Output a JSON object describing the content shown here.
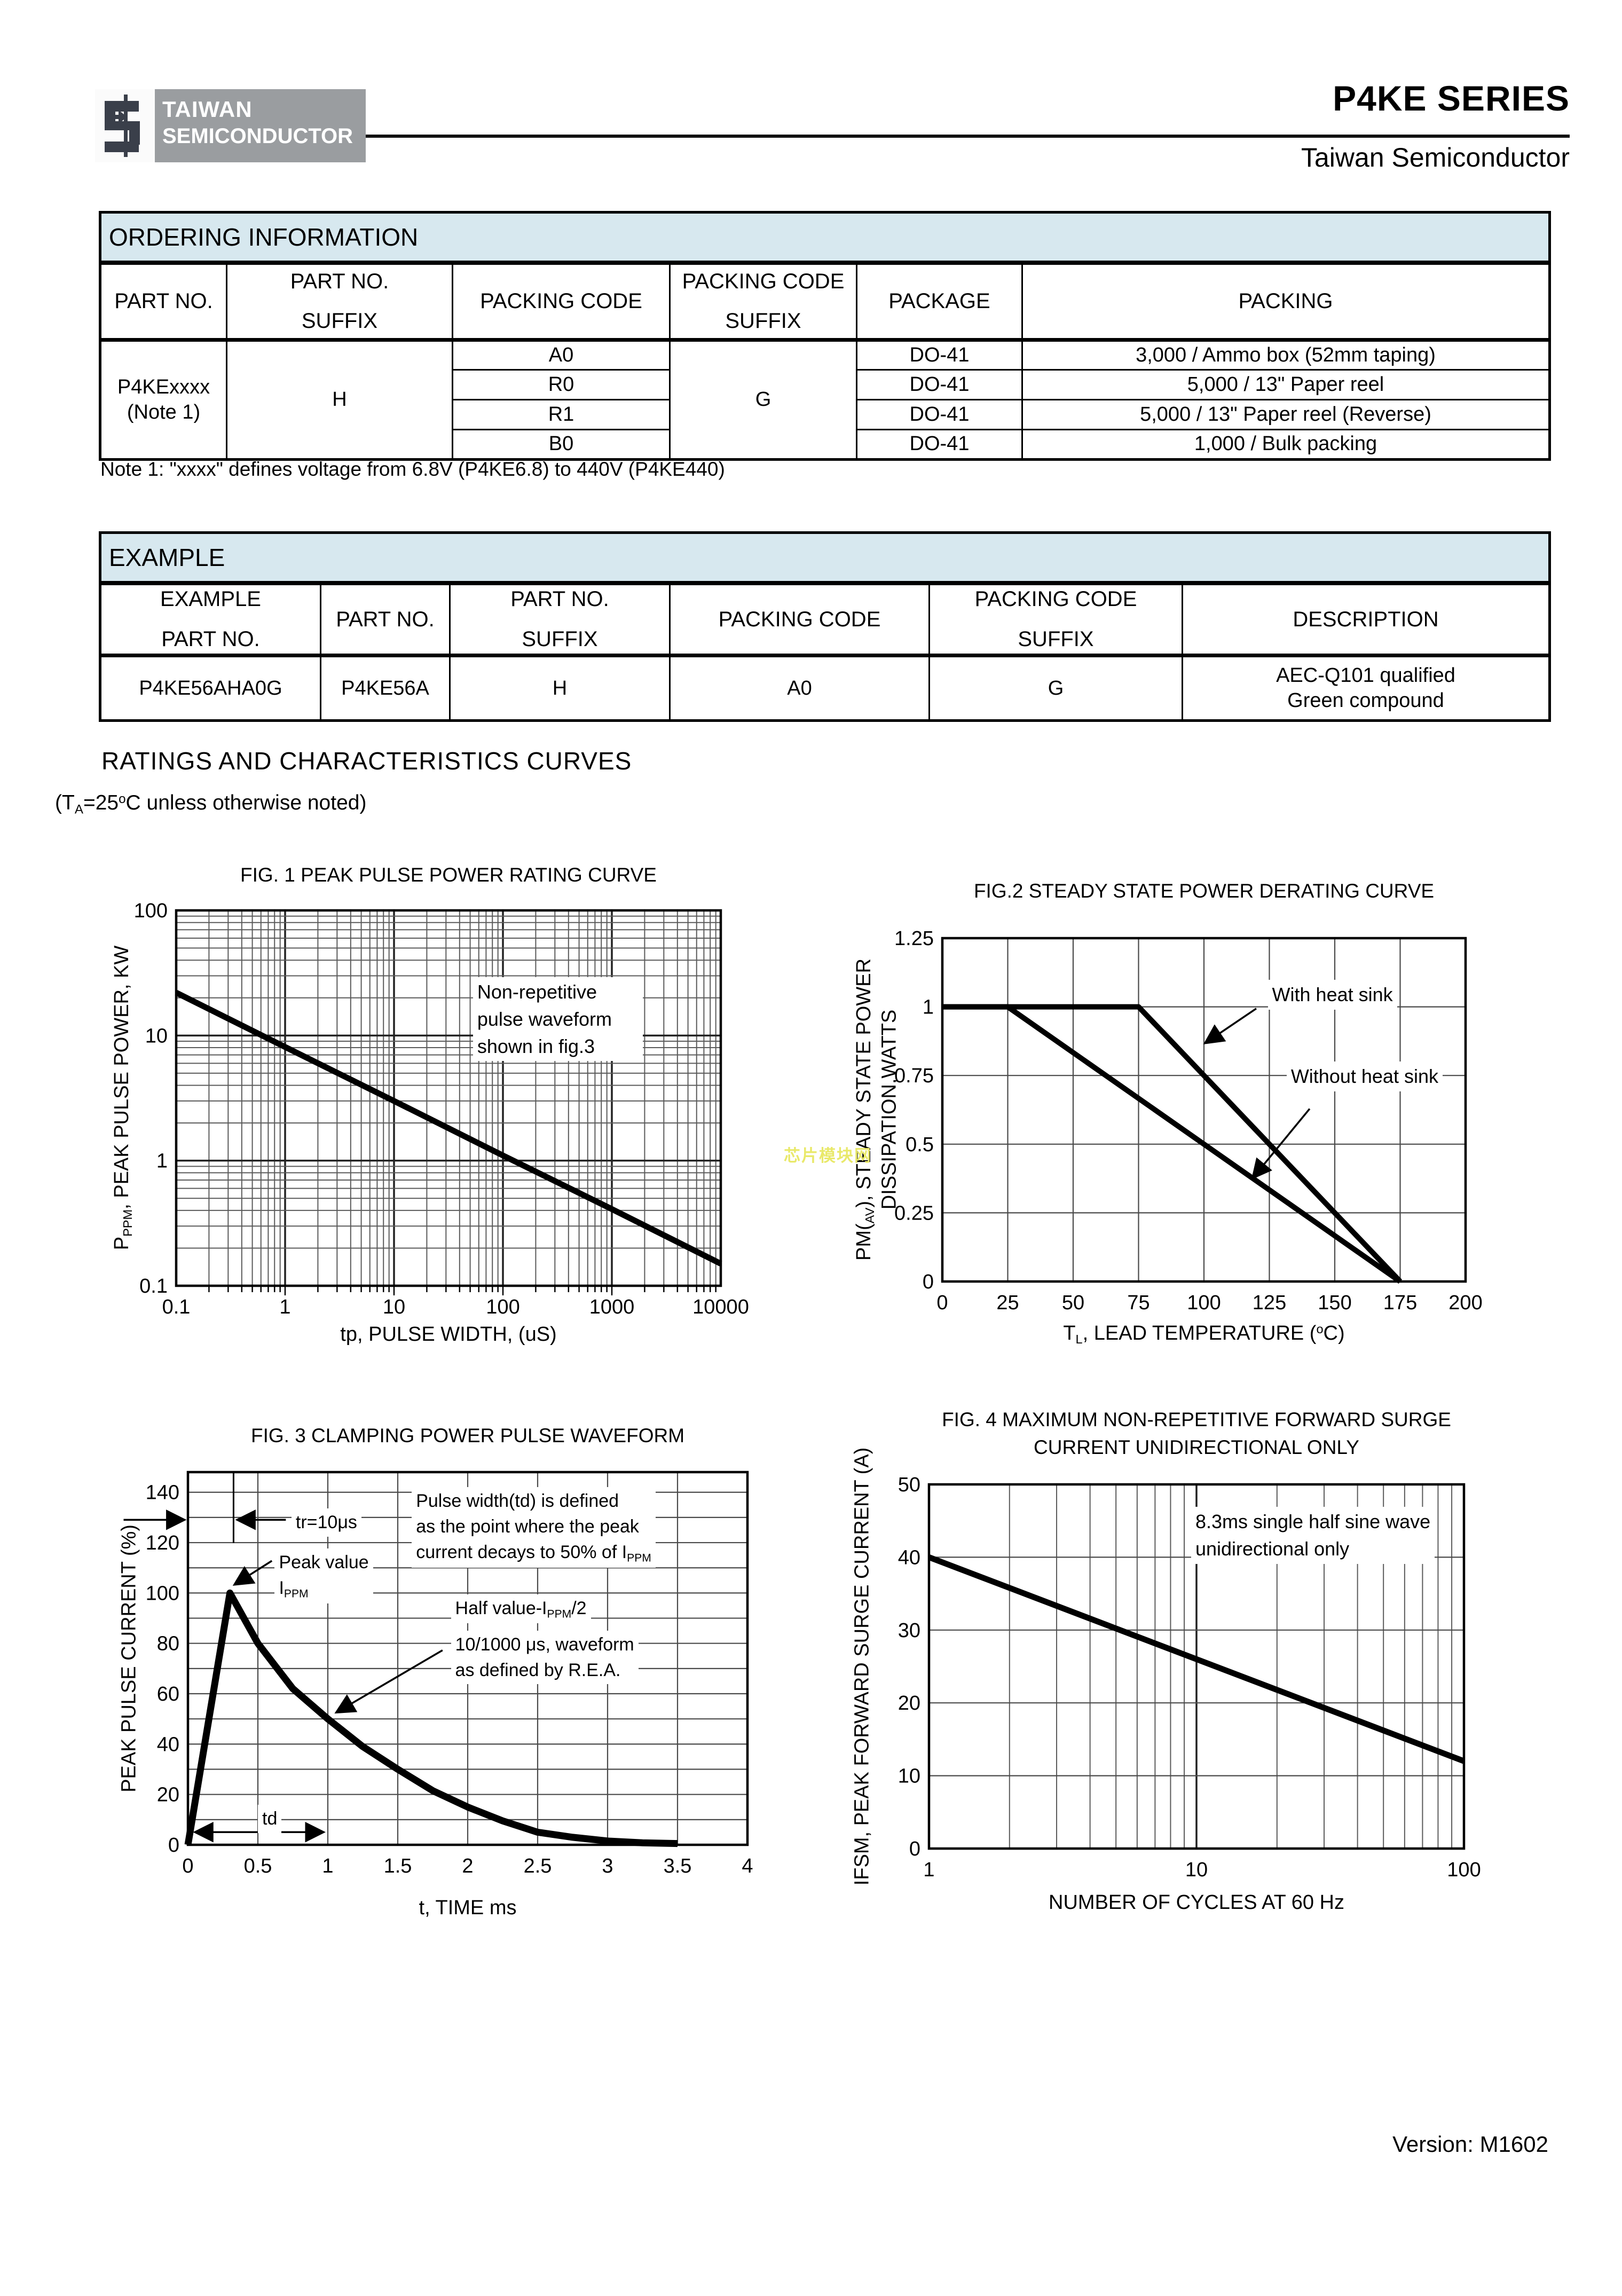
{
  "page": {
    "brand_title": "P4KE SERIES",
    "brand_subtitle": "Taiwan Semiconductor",
    "version": "Version: M1602",
    "watermark": "芯片模块网"
  },
  "logo": {
    "line1": "TAIWAN",
    "line2": "SEMICONDUCTOR"
  },
  "colors": {
    "strip_bg": "#d7e8ef",
    "logo_gray": "#9a9da0",
    "logo_glyph": "#3a3f4a",
    "watermark_yellow": "#e9e96a",
    "grid_gray": "#4a4a4a"
  },
  "ordering": {
    "title": "ORDERING INFORMATION",
    "headers": [
      [
        "PART NO."
      ],
      [
        "PART NO.",
        "SUFFIX"
      ],
      [
        "PACKING CODE"
      ],
      [
        "PACKING CODE",
        "SUFFIX"
      ],
      [
        "PACKAGE"
      ],
      [
        "PACKING"
      ]
    ],
    "part_no": "P4KExxxx",
    "part_no_note": "(Note 1)",
    "part_suffix": "H",
    "packing_suffix": "G",
    "rows": [
      {
        "packing_code": "A0",
        "package": "DO-41",
        "packing": "3,000 / Ammo box (52mm taping)"
      },
      {
        "packing_code": "R0",
        "package": "DO-41",
        "packing": "5,000 / 13\" Paper reel"
      },
      {
        "packing_code": "R1",
        "package": "DO-41",
        "packing": "5,000 / 13\" Paper reel (Reverse)"
      },
      {
        "packing_code": "B0",
        "package": "DO-41",
        "packing": "1,000 / Bulk packing"
      }
    ],
    "note": "Note 1: \"xxxx\" defines voltage from 6.8V (P4KE6.8) to 440V (P4KE440)"
  },
  "example": {
    "title": "EXAMPLE",
    "headers": [
      [
        "EXAMPLE",
        "PART NO."
      ],
      [
        "PART NO."
      ],
      [
        "PART NO.",
        "SUFFIX"
      ],
      [
        "PACKING CODE"
      ],
      [
        "PACKING CODE",
        "SUFFIX"
      ],
      [
        "DESCRIPTION"
      ]
    ],
    "row": {
      "example_part_no": "P4KE56AHA0G",
      "part_no": "P4KE56A",
      "suffix": "H",
      "packing_code": "A0",
      "packing_suffix": "G",
      "description": [
        "AEC-Q101 qualified",
        "Green compound"
      ]
    }
  },
  "section": {
    "heading": "RATINGS AND CHARACTERISTICS CURVES",
    "cond_parts": [
      "(T",
      "A",
      "=25",
      "o",
      "C unless otherwise noted)"
    ]
  },
  "chart_data": [
    {
      "id": "fig1",
      "type": "line",
      "title": "FIG. 1 PEAK PULSE POWER RATING CURVE",
      "xscale": "log",
      "yscale": "log",
      "xlim": [
        0.1,
        10000
      ],
      "ylim": [
        0.1,
        100
      ],
      "xticks": {
        "values": [
          0.1,
          1,
          10,
          100,
          1000,
          10000
        ],
        "labels": [
          "0.1",
          "1",
          "10",
          "100",
          "1000",
          "10000"
        ]
      },
      "yticks": {
        "values": [
          100,
          10,
          1,
          0.1
        ],
        "labels": [
          "100",
          "10",
          "1",
          "0.1"
        ]
      },
      "grid": {
        "x": "log",
        "y": "log"
      },
      "xminorticks": true,
      "xlabel": [
        [
          "tp, PULSE WIDTH, (uS)"
        ]
      ],
      "ylabel": [
        [
          "P"
        ],
        [
          "PPM",
          "sub"
        ],
        [
          ", PEAK PULSE POWER, KW"
        ]
      ],
      "series": [
        {
          "name": "peak pulse power",
          "width": 11,
          "points": [
            [
              0.1,
              22
            ],
            [
              1,
              8.1
            ],
            [
              10,
              3.0
            ],
            [
              100,
              1.1
            ],
            [
              1000,
              0.41
            ],
            [
              10000,
              0.15
            ]
          ]
        }
      ],
      "annotations": [
        {
          "name": "waveform-note",
          "fx": 0.545,
          "fy": 0.178,
          "font": 36,
          "minw": 318,
          "lines": [
            [
              [
                "Non-repetitive"
              ]
            ],
            [
              [
                "pulse waveform"
              ]
            ],
            [
              [
                "shown in fig.3"
              ]
            ]
          ]
        }
      ],
      "arrows": []
    },
    {
      "id": "fig2",
      "type": "line",
      "title": "FIG.2 STEADY STATE POWER DERATING CURVE",
      "xscale": "linear",
      "yscale": "linear",
      "xlim": [
        0,
        200
      ],
      "ylim": [
        0,
        1.25
      ],
      "xticks": {
        "values": [
          0,
          25,
          50,
          75,
          100,
          125,
          150,
          175,
          200
        ],
        "labels": [
          "0",
          "25",
          "50",
          "75",
          "100",
          "125",
          "150",
          "175",
          "200"
        ]
      },
      "yticks": {
        "values": [
          0,
          0.25,
          0.5,
          0.75,
          1,
          1.25
        ],
        "labels": [
          "0",
          "0.25",
          "0.5",
          "0.75",
          "1",
          "1.25"
        ]
      },
      "grid": {
        "xstep": 25,
        "ystep": 0.25
      },
      "xlabel": [
        [
          "T"
        ],
        [
          "L",
          "sub"
        ],
        [
          ", LEAD TEMPERATURE ("
        ],
        [
          "o",
          "sup"
        ],
        [
          "C)"
        ]
      ],
      "ylabel": [
        [
          "PM("
        ],
        [
          "AV",
          "sub"
        ],
        [
          "), STEADY STATE POWER"
        ]
      ],
      "ylabel2": [
        [
          "DISSIPATION,WATTS"
        ]
      ],
      "series": [
        {
          "name": "With heat sink",
          "width": 10,
          "points": [
            [
              0,
              1
            ],
            [
              75,
              1
            ],
            [
              175,
              0
            ]
          ]
        },
        {
          "name": "Without heat sink",
          "width": 10,
          "points": [
            [
              0,
              1
            ],
            [
              25,
              1
            ],
            [
              175,
              0
            ]
          ]
        }
      ],
      "annotations": [
        {
          "name": "with-heat-sink-label",
          "fx": 0.622,
          "fy": 0.122,
          "font": 36,
          "lines": [
            [
              [
                "With heat sink"
              ]
            ]
          ]
        },
        {
          "name": "without-heat-sink-label",
          "fx": 0.658,
          "fy": 0.36,
          "font": 36,
          "lines": [
            [
              [
                "Without heat sink"
              ]
            ]
          ]
        }
      ],
      "arrows": [
        {
          "from": [
            0.6,
            0.205
          ],
          "to": [
            0.502,
            0.306
          ]
        },
        {
          "from": [
            0.702,
            0.497
          ],
          "to": [
            0.593,
            0.699
          ]
        }
      ]
    },
    {
      "id": "fig3",
      "type": "line",
      "title": "FIG. 3 CLAMPING POWER PULSE WAVEFORM",
      "xscale": "linear",
      "yscale": "linear",
      "xlim": [
        0,
        4
      ],
      "ylim": [
        0,
        148
      ],
      "xticks": {
        "values": [
          0,
          0.5,
          1,
          1.5,
          2,
          2.5,
          3,
          3.5,
          4
        ],
        "labels": [
          "0",
          "0.5",
          "1",
          "1.5",
          "2",
          "2.5",
          "3",
          "3.5",
          "4"
        ]
      },
      "yticks": {
        "values": [
          0,
          20,
          40,
          60,
          80,
          100,
          120,
          140
        ],
        "labels": [
          "0",
          "20",
          "40",
          "60",
          "80",
          "100",
          "120",
          "140"
        ]
      },
      "grid": {
        "xstep": 0.5,
        "ystep": 10
      },
      "xlabel": [
        [
          "t, TIME ms"
        ]
      ],
      "ylabel": [
        [
          "PEAK PULSE CURRENT (%)"
        ]
      ],
      "series": [
        {
          "name": "clamping pulse waveform",
          "width": 13,
          "points": [
            [
              0,
              0
            ],
            [
              0.3,
              100
            ],
            [
              0.5,
              80
            ],
            [
              0.75,
              62
            ],
            [
              1,
              50
            ],
            [
              1.25,
              39
            ],
            [
              1.5,
              30
            ],
            [
              1.75,
              21.5
            ],
            [
              2,
              15
            ],
            [
              2.25,
              9.5
            ],
            [
              2.5,
              5
            ],
            [
              2.75,
              3
            ],
            [
              3,
              1.5
            ],
            [
              3.25,
              0.8
            ],
            [
              3.5,
              0.5
            ]
          ]
        }
      ],
      "annotations": [
        {
          "name": "tr-label",
          "fx": 0.185,
          "fy": 0.098,
          "font": 34,
          "lines": [
            [
              [
                "tr=10μs"
              ]
            ]
          ]
        },
        {
          "name": "peak-value-label",
          "fx": 0.155,
          "fy": 0.205,
          "font": 34,
          "lines": [
            [
              [
                "Peak value"
              ]
            ],
            [
              [
                "I"
              ],
              [
                "PPM",
                "sub"
              ]
            ]
          ]
        },
        {
          "name": "pulse-width-note",
          "fx": 0.4,
          "fy": 0.04,
          "font": 34,
          "lines": [
            [
              [
                "Pulse width(td) is defined"
              ]
            ],
            [
              [
                "as the point where the peak"
              ]
            ],
            [
              [
                "current decays to 50% of I"
              ],
              [
                "PPM",
                "sub"
              ]
            ]
          ]
        },
        {
          "name": "half-value-label",
          "fx": 0.47,
          "fy": 0.328,
          "font": 34,
          "lines": [
            [
              [
                "Half value-I"
              ],
              [
                "PPM",
                "sub"
              ],
              [
                "/2"
              ]
            ]
          ]
        },
        {
          "name": "rea-note",
          "fx": 0.47,
          "fy": 0.425,
          "font": 34,
          "lines": [
            [
              [
                "10/1000 μs, waveform"
              ]
            ],
            [
              [
                "as defined by R.E.A."
              ]
            ]
          ]
        },
        {
          "name": "td-label",
          "fx": 0.125,
          "fy": 0.893,
          "font": 34,
          "lines": [
            [
              [
                "td"
              ]
            ]
          ]
        }
      ],
      "arrows": [
        {
          "from": [
            0.175,
            0.128
          ],
          "to": [
            0.088,
            0.128
          ]
        },
        {
          "from": [
            -0.115,
            0.128
          ],
          "to": [
            -0.006,
            0.128
          ]
        },
        {
          "from": [
            0.15,
            0.238
          ],
          "to": [
            0.083,
            0.302
          ]
        },
        {
          "from": [
            0.455,
            0.478
          ],
          "to": [
            0.265,
            0.645
          ]
        },
        {
          "from": [
            0.0125,
            0.966
          ],
          "to": [
            0.2425,
            0.966
          ],
          "double": true
        }
      ],
      "vlines": [
        {
          "fx": 0.0815,
          "fy1": 0.0,
          "fy2": 0.19
        }
      ]
    },
    {
      "id": "fig4",
      "type": "line",
      "title": "FIG. 4 MAXIMUM  NON-REPETITIVE FORWARD SURGE",
      "title2": "CURRENT UNIDIRECTIONAL ONLY",
      "xscale": "log",
      "yscale": "linear",
      "xlim": [
        1,
        100
      ],
      "ylim": [
        0,
        50
      ],
      "xticks": {
        "values": [
          1,
          10,
          100
        ],
        "labels": [
          "1",
          "10",
          "100"
        ]
      },
      "yticks": {
        "values": [
          0,
          10,
          20,
          30,
          40,
          50
        ],
        "labels": [
          "0",
          "10",
          "20",
          "30",
          "40",
          "50"
        ]
      },
      "grid": {
        "x": "log",
        "ystep": 10
      },
      "xlabel": [
        [
          "NUMBER OF CYCLES AT 60 Hz"
        ]
      ],
      "ylabel": [
        [
          "IFSM, PEAK FORWARD SURGE CURRENT (A)"
        ]
      ],
      "series": [
        {
          "name": "peak forward surge current",
          "width": 11,
          "points": [
            [
              1,
              40
            ],
            [
              100,
              12
            ]
          ]
        }
      ],
      "annotations": [
        {
          "name": "sine-wave-note",
          "fx": 0.49,
          "fy": 0.062,
          "font": 36,
          "lines": [
            [
              [
                "8.3ms single half sine wave"
              ]
            ],
            [
              [
                "unidirectional only"
              ]
            ]
          ]
        }
      ],
      "arrows": []
    }
  ]
}
